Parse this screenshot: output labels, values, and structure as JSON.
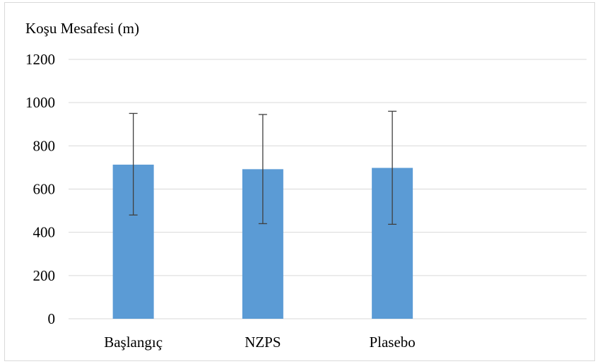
{
  "chart_data": {
    "type": "bar",
    "ylabel": "Koşu Mesafesi (m)",
    "categories": [
      "Başlangıç",
      "NZPS",
      "Plasebo"
    ],
    "values": [
      713,
      692,
      698
    ],
    "error_low": [
      480,
      440,
      437
    ],
    "error_high": [
      950,
      945,
      960
    ],
    "ylim": [
      0,
      1200
    ],
    "yticks": [
      0,
      200,
      400,
      600,
      800,
      1000,
      1200
    ],
    "grid": true,
    "bar_color": "#5b9bd5",
    "error_bar_color": "#404040",
    "grid_color": "#d9d9d9"
  }
}
